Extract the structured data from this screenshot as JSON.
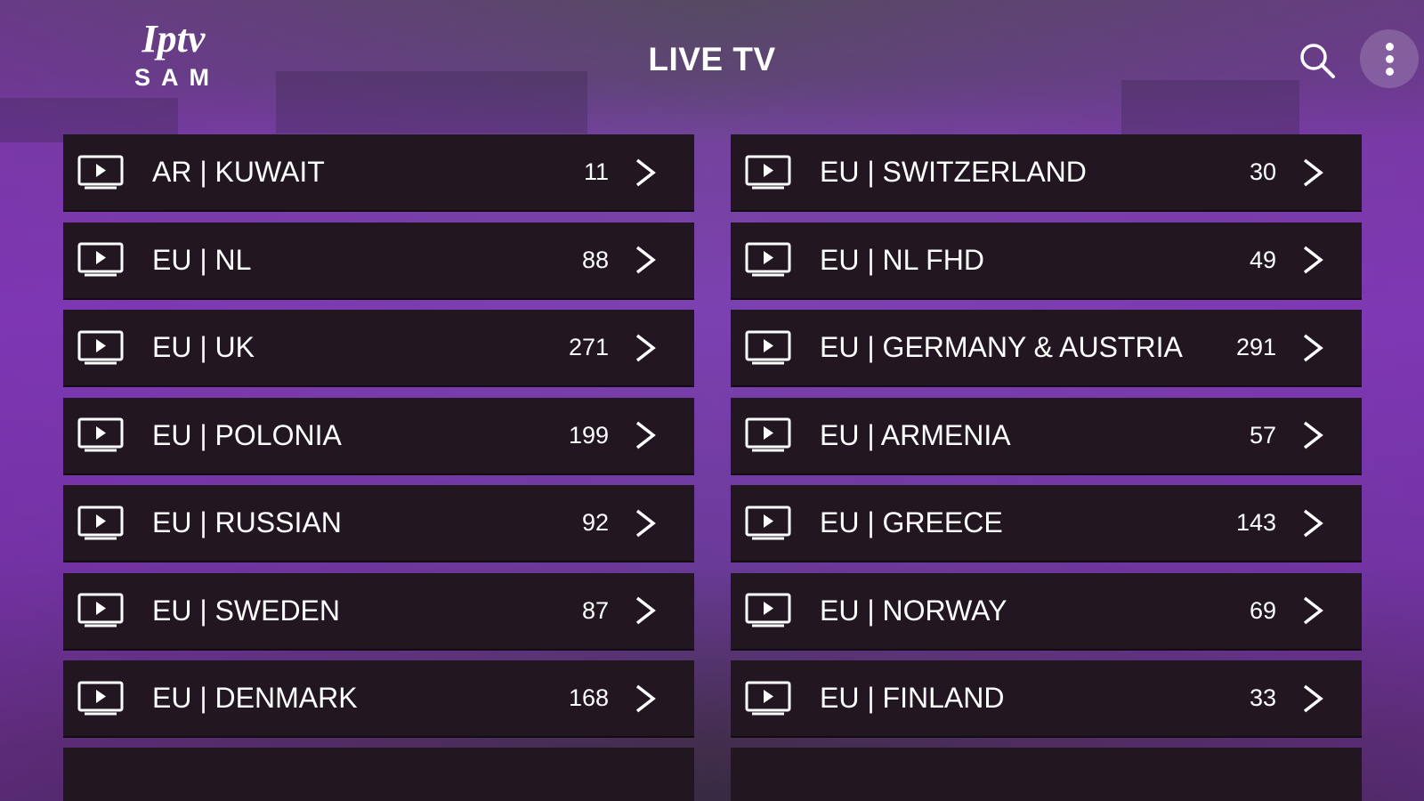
{
  "logo": {
    "script": "Iptv",
    "name": "SAM"
  },
  "header": {
    "title": "LIVE TV",
    "search_icon": "search-icon",
    "menu_icon": "more-vertical-icon"
  },
  "colors": {
    "accent": "#8547bd",
    "row_bg": "#221721"
  },
  "categories": {
    "left": [
      {
        "label": "AR | KUWAIT",
        "count": "11"
      },
      {
        "label": "EU | NL",
        "count": "88"
      },
      {
        "label": "EU | UK",
        "count": "271"
      },
      {
        "label": "EU | POLONIA",
        "count": "199"
      },
      {
        "label": "EU | RUSSIAN",
        "count": "92"
      },
      {
        "label": "EU | SWEDEN",
        "count": "87"
      },
      {
        "label": "EU | DENMARK",
        "count": "168"
      }
    ],
    "right": [
      {
        "label": "EU | SWITZERLAND",
        "count": "30"
      },
      {
        "label": "EU | NL FHD",
        "count": "49"
      },
      {
        "label": "EU | GERMANY & AUSTRIA",
        "count": "291"
      },
      {
        "label": "EU | ARMENIA",
        "count": "57"
      },
      {
        "label": "EU | GREECE",
        "count": "143"
      },
      {
        "label": "EU | NORWAY",
        "count": "69"
      },
      {
        "label": "EU | FINLAND",
        "count": "33"
      }
    ]
  }
}
